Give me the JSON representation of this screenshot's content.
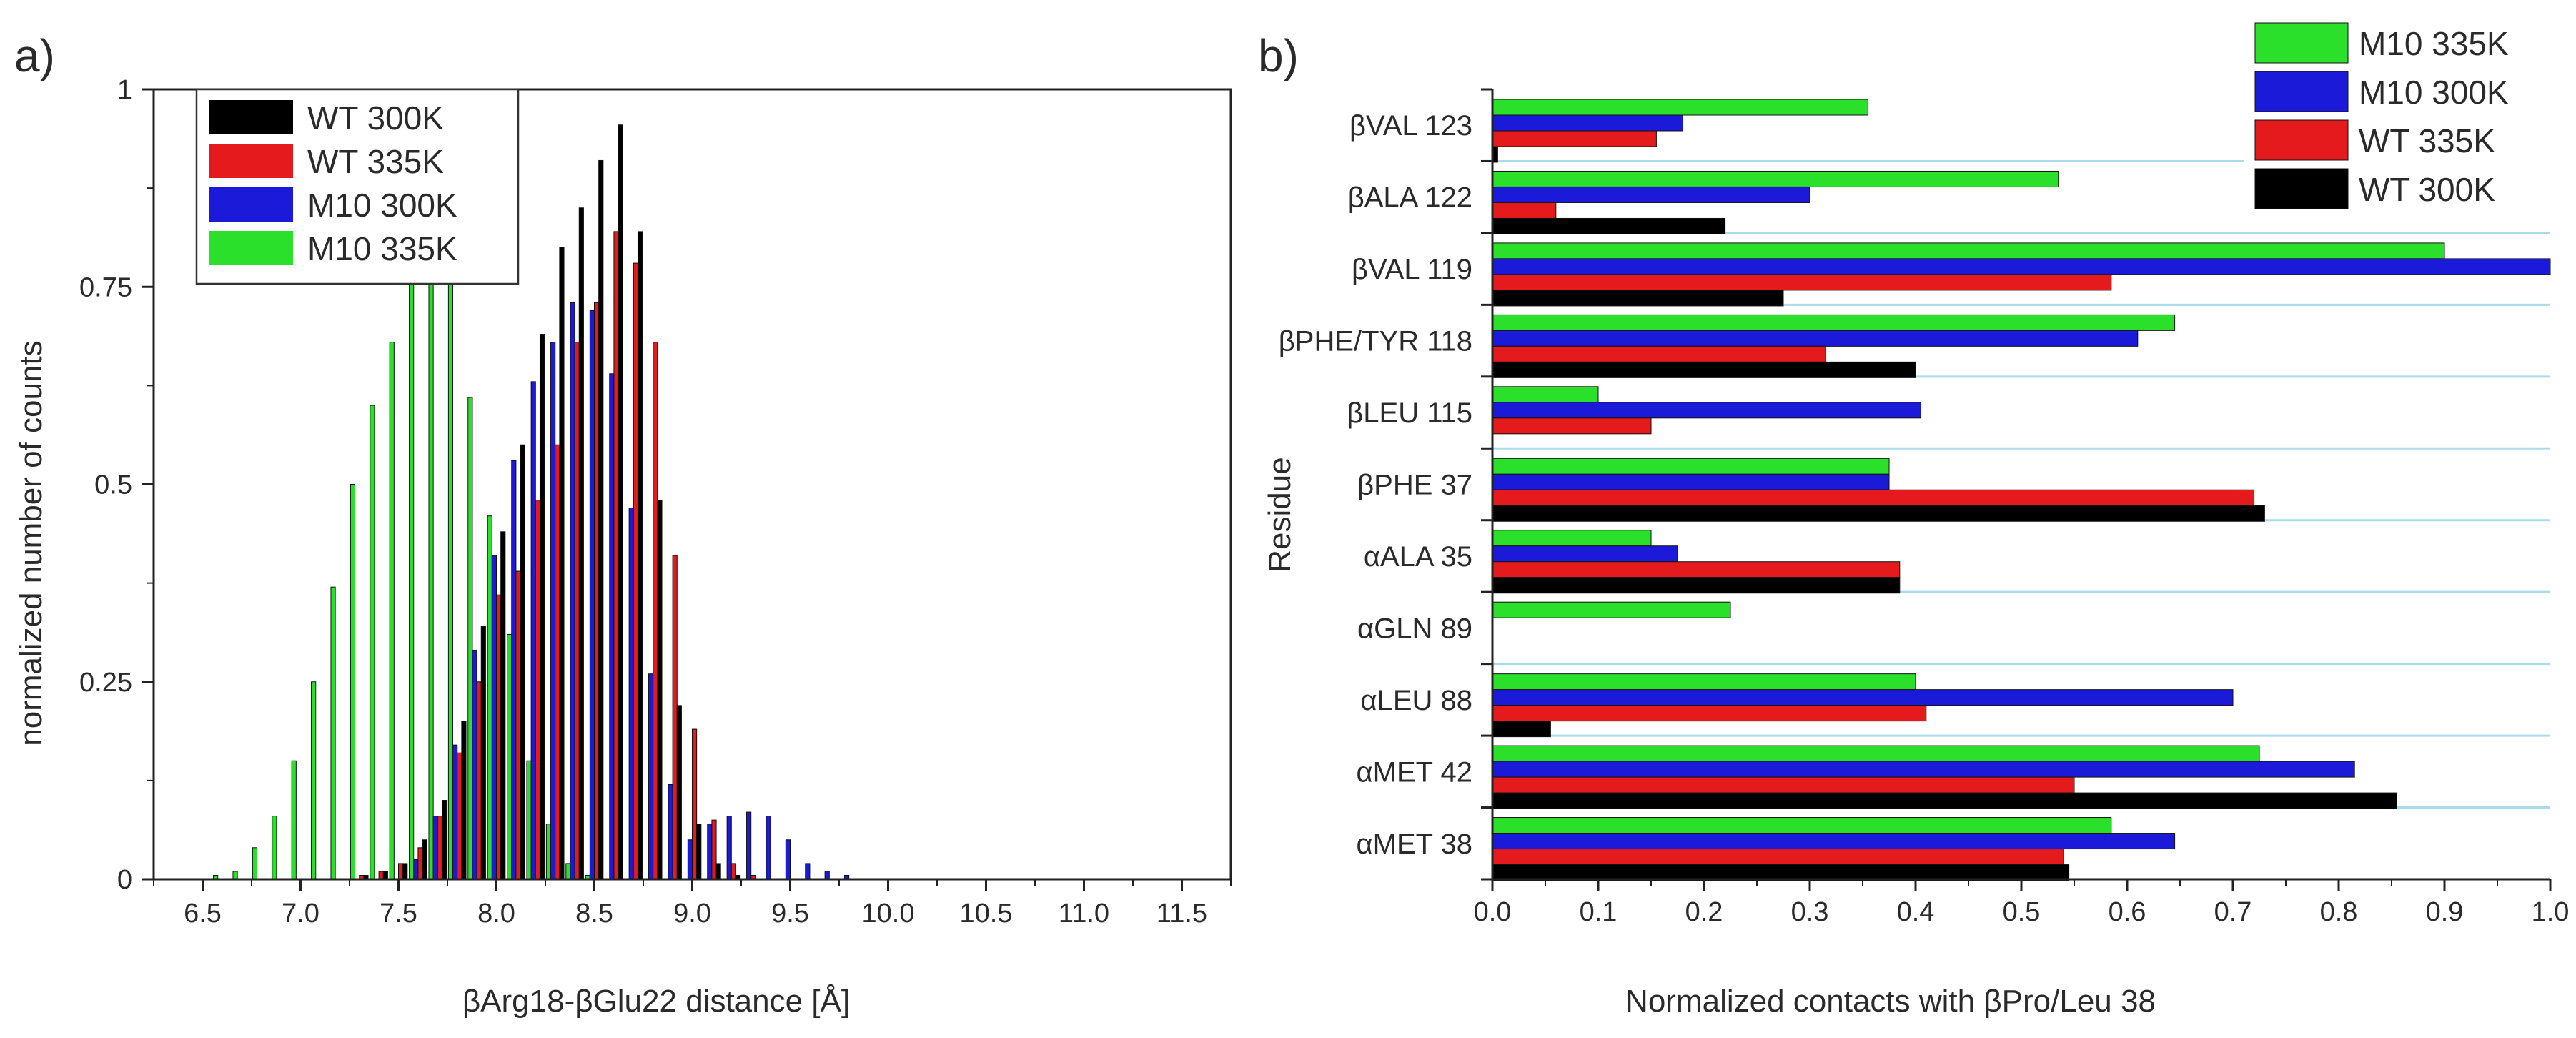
{
  "chart_data": [
    {
      "type": "bar",
      "panel_label": "a)",
      "xlabel": "βArg18-βGlu22 distance [Å]",
      "ylabel": "normalized number of counts",
      "xlim": [
        6.25,
        11.75
      ],
      "ylim": [
        0,
        1
      ],
      "xticks": [
        "6.5",
        "7.0",
        "7.5",
        "8.0",
        "8.5",
        "9.0",
        "9.5",
        "10.0",
        "10.5",
        "11.0",
        "11.5"
      ],
      "yticks": [
        "0",
        "0.25",
        "0.5",
        "0.75",
        "1"
      ],
      "legend_position": "top-left",
      "bin_centers": [
        6.5,
        6.6,
        6.7,
        6.8,
        6.9,
        7.0,
        7.1,
        7.2,
        7.3,
        7.4,
        7.5,
        7.6,
        7.7,
        7.8,
        7.9,
        8.0,
        8.1,
        8.2,
        8.3,
        8.4,
        8.5,
        8.6,
        8.7,
        8.8,
        8.9,
        9.0,
        9.1,
        9.2,
        9.3,
        9.4,
        9.5,
        9.6,
        9.7,
        9.8,
        9.9,
        10.0,
        10.1,
        10.2,
        10.3,
        10.4,
        10.5,
        10.6,
        10.7,
        10.8,
        10.9,
        11.0,
        11.1,
        11.2,
        11.3,
        11.4,
        11.5,
        11.6,
        11.7,
        11.8
      ],
      "series": [
        {
          "name": "WT 300K",
          "color": "#000000",
          "values": [
            0,
            0,
            0,
            0,
            0,
            0,
            0,
            0,
            0.005,
            0.01,
            0.02,
            0.05,
            0.1,
            0.2,
            0.32,
            0.44,
            0.55,
            0.69,
            0.8,
            0.85,
            0.91,
            0.955,
            0.82,
            0.48,
            0.22,
            0.07,
            0.02,
            0.005,
            0,
            0,
            0,
            0,
            0,
            0,
            0,
            0,
            0,
            0,
            0,
            0,
            0,
            0,
            0,
            0,
            0,
            0,
            0,
            0,
            0,
            0,
            0,
            0,
            0,
            0
          ]
        },
        {
          "name": "WT 335K",
          "color": "#e41a1c",
          "values": [
            0,
            0,
            0,
            0,
            0,
            0,
            0,
            0,
            0.005,
            0.01,
            0.02,
            0.04,
            0.08,
            0.16,
            0.25,
            0.36,
            0.39,
            0.48,
            0.55,
            0.68,
            0.73,
            0.82,
            0.78,
            0.68,
            0.41,
            0.19,
            0.075,
            0.02,
            0.005,
            0,
            0,
            0,
            0,
            0,
            0,
            0,
            0,
            0,
            0,
            0,
            0,
            0,
            0,
            0,
            0,
            0,
            0,
            0,
            0,
            0,
            0,
            0,
            0,
            0
          ]
        },
        {
          "name": "M10 300K",
          "color": "#1a1ad8",
          "values": [
            0,
            0,
            0,
            0,
            0,
            0,
            0,
            0,
            0,
            0,
            0,
            0.025,
            0.08,
            0.17,
            0.29,
            0.41,
            0.53,
            0.63,
            0.68,
            0.73,
            0.72,
            0.64,
            0.47,
            0.26,
            0.12,
            0.05,
            0.07,
            0.08,
            0.085,
            0.08,
            0.05,
            0.02,
            0.01,
            0.005,
            0,
            0,
            0,
            0,
            0,
            0,
            0,
            0,
            0,
            0,
            0,
            0,
            0,
            0,
            0,
            0,
            0,
            0,
            0,
            0
          ]
        },
        {
          "name": "M10 335K",
          "color": "#2be02b",
          "values": [
            0,
            0.005,
            0.01,
            0.04,
            0.08,
            0.15,
            0.25,
            0.37,
            0.5,
            0.6,
            0.68,
            0.78,
            0.78,
            0.77,
            0.61,
            0.46,
            0.31,
            0.15,
            0.07,
            0.02,
            0.005,
            0,
            0,
            0,
            0,
            0,
            0,
            0,
            0,
            0,
            0,
            0,
            0,
            0,
            0,
            0,
            0,
            0,
            0,
            0,
            0,
            0,
            0,
            0,
            0,
            0,
            0,
            0,
            0,
            0,
            0,
            0,
            0,
            0
          ]
        }
      ]
    },
    {
      "type": "bar",
      "orientation": "horizontal",
      "panel_label": "b)",
      "xlabel": "Normalized contacts with βPro/Leu 38",
      "ylabel": "Residue",
      "xlim": [
        0,
        1
      ],
      "xticks": [
        "0.0",
        "0.1",
        "0.2",
        "0.3",
        "0.4",
        "0.5",
        "0.6",
        "0.7",
        "0.8",
        "0.9",
        "1.0"
      ],
      "legend_position": "top-right",
      "categories": [
        "βVAL 123",
        "βALA 122",
        "βVAL 119",
        "βPHE/TYR 118",
        "βLEU 115",
        "βPHE 37",
        "αALA 35",
        "αGLN 89",
        "αLEU 88",
        "αMET 42",
        "αMET 38"
      ],
      "series": [
        {
          "name": "M10 335K",
          "color": "#2be02b",
          "values": [
            0.355,
            0.535,
            0.9,
            0.645,
            0.1,
            0.375,
            0.15,
            0.225,
            0.4,
            0.725,
            0.585
          ]
        },
        {
          "name": "M10 300K",
          "color": "#1a1ad8",
          "values": [
            0.18,
            0.3,
            1.0,
            0.61,
            0.405,
            0.375,
            0.175,
            0,
            0.7,
            0.815,
            0.645
          ]
        },
        {
          "name": "WT 335K",
          "color": "#e41a1c",
          "values": [
            0.155,
            0.06,
            0.585,
            0.315,
            0.15,
            0.72,
            0.385,
            0,
            0.41,
            0.55,
            0.54
          ]
        },
        {
          "name": "WT 300K",
          "color": "#000000",
          "values": [
            0.005,
            0.22,
            0.275,
            0.4,
            0,
            0.73,
            0.385,
            0,
            0.055,
            0.855,
            0.545
          ]
        }
      ]
    }
  ]
}
